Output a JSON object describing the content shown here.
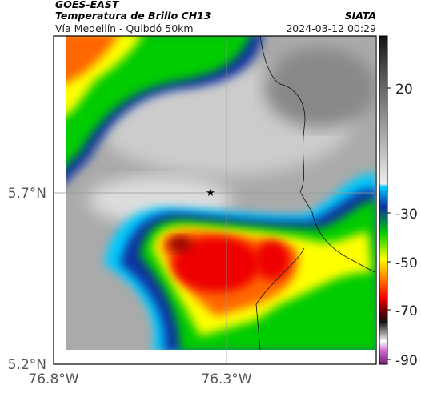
{
  "header": {
    "title": "GOES-EAST",
    "subtitle": "Temperatura de Brillo CH13",
    "source": "SIATA",
    "location": "Vía Medellín - Quibdó 50km",
    "datetime": "2024-03-12 00:29"
  },
  "axes": {
    "lat_ticks": [
      "5.7°N",
      "5.2°N"
    ],
    "lon_ticks": [
      "76.8°W",
      "76.3°W"
    ]
  },
  "colorbar": {
    "ticks": [
      "20",
      "-30",
      "-50",
      "-70",
      "-90"
    ]
  }
}
